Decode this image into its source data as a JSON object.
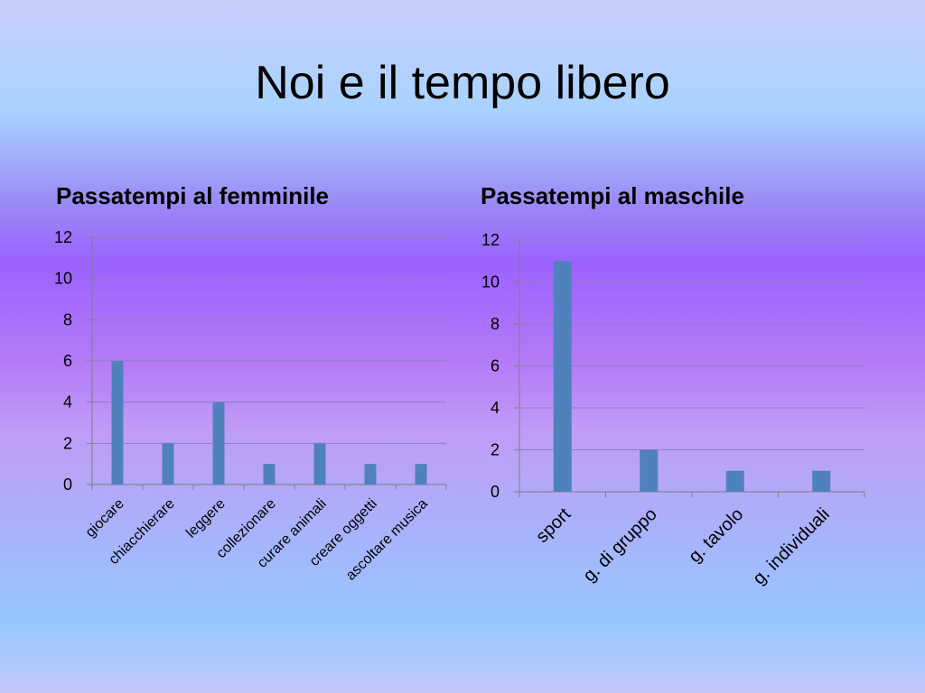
{
  "slide": {
    "title": "Noi e il tempo libero"
  },
  "colors": {
    "bar": "#4f81bd",
    "gridline": "#8b7fc0",
    "axis": "#7f7f7f"
  },
  "chart_data": [
    {
      "type": "bar",
      "title": "Passatempi al femminile",
      "categories": [
        "giocare",
        "chiacchierare",
        "leggere",
        "collezionare",
        "curare animali",
        "creare oggetti",
        "ascoltare musica"
      ],
      "values": [
        6,
        2,
        4,
        1,
        2,
        1,
        1
      ],
      "ylim": [
        0,
        12
      ],
      "yticks": [
        0,
        2,
        4,
        6,
        8,
        10,
        12
      ],
      "grid": true,
      "legend": "none"
    },
    {
      "type": "bar",
      "title": "Passatempi al maschile",
      "categories": [
        "sport",
        "g. di gruppo",
        "g. tavolo",
        "g. individuali"
      ],
      "values": [
        11,
        2,
        1,
        1
      ],
      "ylim": [
        0,
        12
      ],
      "yticks": [
        0,
        2,
        4,
        6,
        8,
        10,
        12
      ],
      "grid": true,
      "legend": "none"
    }
  ]
}
